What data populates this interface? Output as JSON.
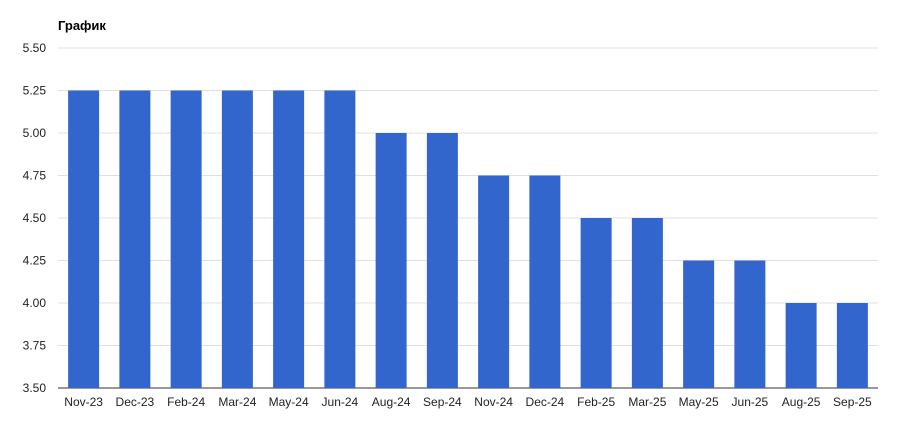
{
  "title": "График",
  "chart_data": {
    "type": "bar",
    "title": "График",
    "xlabel": "",
    "ylabel": "",
    "categories": [
      "Nov-23",
      "Dec-23",
      "Feb-24",
      "Mar-24",
      "May-24",
      "Jun-24",
      "Aug-24",
      "Sep-24",
      "Nov-24",
      "Dec-24",
      "Feb-25",
      "Mar-25",
      "May-25",
      "Jun-25",
      "Aug-25",
      "Sep-25"
    ],
    "values": [
      5.25,
      5.25,
      5.25,
      5.25,
      5.25,
      5.25,
      5.0,
      5.0,
      4.75,
      4.75,
      4.5,
      4.5,
      4.25,
      4.25,
      4.0,
      4.0
    ],
    "ylim": [
      3.5,
      5.5
    ],
    "yticks": [
      "3.50",
      "3.75",
      "4.00",
      "4.25",
      "4.50",
      "4.75",
      "5.00",
      "5.25",
      "5.50"
    ],
    "grid": true,
    "legend": "none",
    "bar_color": "#3366cc",
    "grid_color": "#e0e0e0"
  }
}
